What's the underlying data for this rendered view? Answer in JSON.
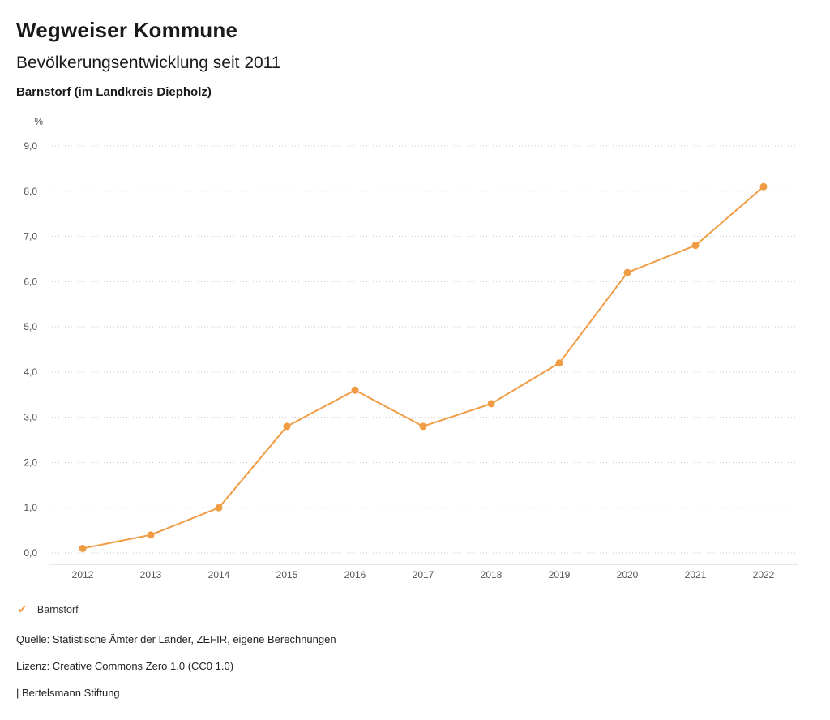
{
  "header": {
    "title": "Wegweiser Kommune",
    "subtitle": "Bevölkerungsentwicklung seit 2011",
    "location": "Barnstorf (im Landkreis Diepholz)"
  },
  "chart_data": {
    "type": "line",
    "title": "Bevölkerungsentwicklung seit 2011",
    "unit_label": "%",
    "x": [
      "2012",
      "2013",
      "2014",
      "2015",
      "2016",
      "2017",
      "2018",
      "2019",
      "2020",
      "2021",
      "2022"
    ],
    "series": [
      {
        "name": "Barnstorf",
        "color": "#f09c44",
        "values": [
          0.1,
          0.4,
          1.0,
          2.8,
          3.6,
          2.8,
          3.3,
          4.2,
          6.2,
          6.8,
          8.1
        ]
      }
    ],
    "ylim": [
      0,
      9
    ],
    "ytick_step": 1,
    "ytick_labels": [
      "0,0",
      "1,0",
      "2,0",
      "3,0",
      "4,0",
      "5,0",
      "6,0",
      "7,0",
      "8,0",
      "9,0"
    ],
    "grid": "dotted-horizontal",
    "legend_position": "bottom-left"
  },
  "legend": {
    "items": [
      {
        "label": "Barnstorf",
        "color": "#f09c44",
        "check_icon": "✔"
      }
    ]
  },
  "footer": {
    "source": "Quelle: Statistische Ämter der Länder, ZEFIR, eigene Berechnungen",
    "license": "Lizenz: Creative Commons Zero 1.0 (CC0 1.0)",
    "attribution": "| Bertelsmann Stiftung"
  }
}
